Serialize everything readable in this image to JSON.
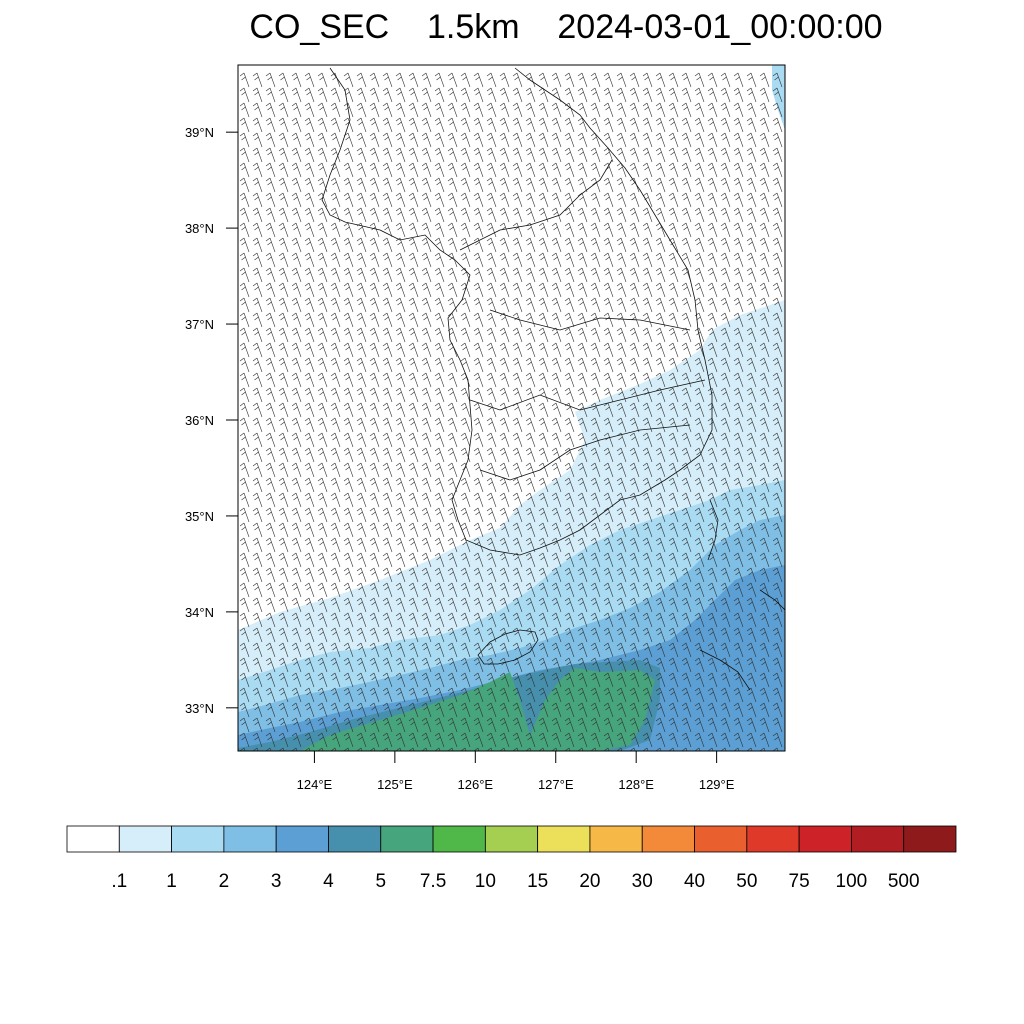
{
  "title": "CO_SEC    1.5km    2024-03-01_00:00:00",
  "map": {
    "lat_labels": [
      "39°N",
      "38°N",
      "37°N",
      "36°N",
      "35°N",
      "34°N",
      "33°N"
    ],
    "lon_labels": [
      "124°E",
      "125°E",
      "126°E",
      "127°E",
      "128°E",
      "129°E"
    ],
    "lat_range": [
      32.55,
      39.7
    ],
    "lon_range": [
      123.05,
      129.85
    ]
  },
  "colorbar": {
    "labels": [
      ".1",
      "1",
      "2",
      "3",
      "4",
      "5",
      "7.5",
      "10",
      "15",
      "20",
      "30",
      "40",
      "50",
      "75",
      "100",
      "500"
    ],
    "colors": [
      "#ffffff",
      "#d6eef9",
      "#a9dbf3",
      "#7fbfe6",
      "#5b9fd4",
      "#4690ad",
      "#46a57c",
      "#50b848",
      "#a5cf50",
      "#ece05a",
      "#f6b847",
      "#f28a3a",
      "#ea5f2e",
      "#df3929",
      "#cc2228",
      "#b01d22",
      "#8e1a1c"
    ]
  }
}
